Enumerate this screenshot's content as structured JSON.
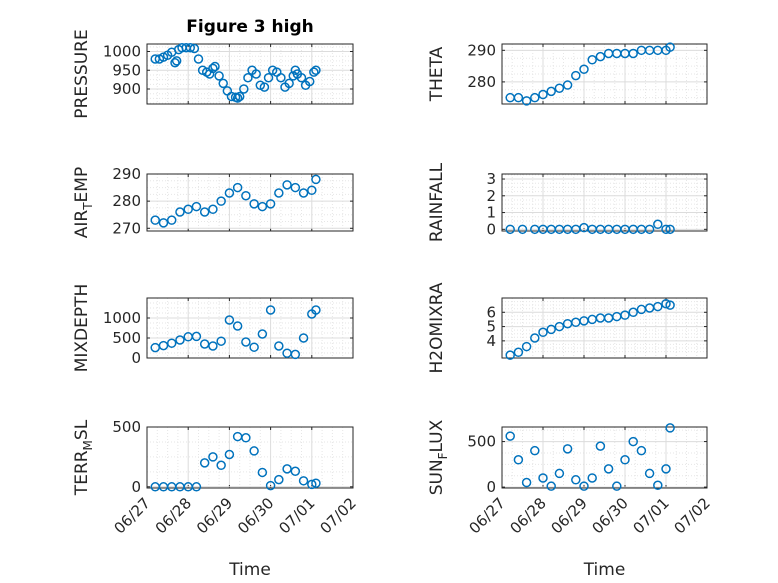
{
  "figure_title": "Figure 3 high",
  "colors": {
    "marker": "#0072BD",
    "axes": "#262626",
    "grid_major": "#dcdcdc",
    "grid_minor": "#e6e6e6",
    "background": "#ffffff"
  },
  "time_ticks": [
    "06/27",
    "06/28",
    "06/29",
    "06/30",
    "07/01",
    "07/02"
  ],
  "time_axis_label": "Time",
  "chart_data": [
    {
      "type": "scatter",
      "panel": "top-left",
      "title": "Figure 3 high",
      "xlabel": "",
      "ylabel": "PRESSURE",
      "ylim": [
        860,
        1020
      ],
      "yticks": [
        900,
        950,
        1000
      ],
      "xlim": [
        0,
        5
      ],
      "grid": true,
      "x": [
        0.2,
        0.3,
        0.4,
        0.5,
        0.6,
        0.68,
        0.72,
        0.77,
        0.85,
        0.95,
        1.05,
        1.15,
        1.25,
        1.35,
        1.45,
        1.52,
        1.6,
        1.65,
        1.75,
        1.85,
        1.95,
        2.05,
        2.15,
        2.2,
        2.25,
        2.35,
        2.45,
        2.55,
        2.65,
        2.75,
        2.85,
        2.95,
        3.05,
        3.15,
        3.25,
        3.35,
        3.45,
        3.55,
        3.6,
        3.65,
        3.75,
        3.85,
        3.95,
        4.05,
        4.1
      ],
      "y": [
        980,
        980,
        985,
        990,
        998,
        970,
        975,
        1005,
        1010,
        1010,
        1010,
        1008,
        980,
        950,
        945,
        940,
        955,
        960,
        935,
        915,
        895,
        880,
        878,
        876,
        880,
        900,
        930,
        950,
        940,
        910,
        905,
        930,
        950,
        945,
        930,
        905,
        915,
        935,
        950,
        940,
        930,
        910,
        920,
        945,
        950
      ]
    },
    {
      "type": "scatter",
      "panel": "top-right",
      "xlabel": "",
      "ylabel": "THETA",
      "ylim": [
        273,
        292
      ],
      "yticks": [
        280,
        290
      ],
      "xlim": [
        0,
        5
      ],
      "grid": true,
      "x": [
        0.2,
        0.4,
        0.6,
        0.8,
        1.0,
        1.2,
        1.4,
        1.6,
        1.8,
        2.0,
        2.2,
        2.4,
        2.6,
        2.8,
        3.0,
        3.2,
        3.4,
        3.6,
        3.8,
        4.0,
        4.1
      ],
      "y": [
        275,
        275,
        274,
        275,
        276,
        277,
        278,
        279,
        282,
        284,
        287,
        288,
        289,
        289,
        289,
        289,
        290,
        290,
        290,
        290,
        291
      ]
    },
    {
      "type": "scatter",
      "panel": "second-left",
      "xlabel": "",
      "ylabel": "AIR_TEMP",
      "ylim": [
        269,
        290
      ],
      "yticks": [
        270,
        280,
        290
      ],
      "xlim": [
        0,
        5
      ],
      "grid": true,
      "x": [
        0.2,
        0.4,
        0.6,
        0.8,
        1.0,
        1.2,
        1.4,
        1.6,
        1.8,
        2.0,
        2.2,
        2.4,
        2.6,
        2.8,
        3.0,
        3.2,
        3.4,
        3.6,
        3.8,
        4.0,
        4.1
      ],
      "y": [
        273,
        272,
        273,
        276,
        277,
        278,
        276,
        277,
        280,
        283,
        285,
        282,
        279,
        278,
        279,
        283,
        286,
        285,
        283,
        284,
        288
      ]
    },
    {
      "type": "scatter",
      "panel": "second-right",
      "xlabel": "",
      "ylabel": "RAINFALL",
      "ylim": [
        -0.1,
        3.3
      ],
      "yticks": [
        0,
        1,
        2,
        3
      ],
      "xlim": [
        0,
        5
      ],
      "grid": true,
      "x": [
        0.2,
        0.5,
        0.8,
        1.0,
        1.2,
        1.4,
        1.6,
        1.8,
        2.0,
        2.2,
        2.4,
        2.6,
        2.8,
        3.0,
        3.2,
        3.4,
        3.6,
        3.8,
        4.0,
        4.1
      ],
      "y": [
        0,
        0,
        0,
        0,
        0,
        0,
        0,
        0,
        0.1,
        0,
        0,
        0,
        0,
        0,
        0,
        0,
        0,
        0.3,
        0,
        0
      ]
    },
    {
      "type": "scatter",
      "panel": "third-left",
      "xlabel": "",
      "ylabel": "MIXDEPTH",
      "ylim": [
        0,
        1500
      ],
      "yticks": [
        0,
        500,
        1000
      ],
      "xlim": [
        0,
        5
      ],
      "grid": true,
      "x": [
        0.2,
        0.4,
        0.6,
        0.8,
        1.0,
        1.2,
        1.4,
        1.6,
        1.8,
        2.0,
        2.2,
        2.4,
        2.6,
        2.8,
        3.0,
        3.2,
        3.4,
        3.6,
        3.8,
        4.0,
        4.1
      ],
      "y": [
        260,
        310,
        370,
        450,
        530,
        540,
        350,
        300,
        420,
        950,
        800,
        400,
        270,
        600,
        1200,
        300,
        120,
        90,
        500,
        1100,
        1200
      ]
    },
    {
      "type": "scatter",
      "panel": "third-right",
      "xlabel": "",
      "ylabel": "H2OMIXRA",
      "ylim": [
        2.8,
        7
      ],
      "yticks": [
        4,
        5,
        6
      ],
      "xlim": [
        0,
        5
      ],
      "grid": true,
      "x": [
        0.2,
        0.4,
        0.6,
        0.8,
        1.0,
        1.2,
        1.4,
        1.6,
        1.8,
        2.0,
        2.2,
        2.4,
        2.6,
        2.8,
        3.0,
        3.2,
        3.4,
        3.6,
        3.8,
        4.0,
        4.1
      ],
      "y": [
        3.0,
        3.2,
        3.6,
        4.2,
        4.6,
        4.8,
        5.0,
        5.2,
        5.3,
        5.4,
        5.5,
        5.6,
        5.6,
        5.7,
        5.8,
        6.0,
        6.2,
        6.3,
        6.4,
        6.6,
        6.5
      ]
    },
    {
      "type": "scatter",
      "panel": "bottom-left",
      "xlabel": "Time",
      "ylabel": "TERR_MSL",
      "ylim": [
        -10,
        500
      ],
      "yticks": [
        0,
        500
      ],
      "xlim": [
        0,
        5
      ],
      "grid": true,
      "x": [
        0.2,
        0.4,
        0.6,
        0.8,
        1.0,
        1.2,
        1.4,
        1.6,
        1.8,
        2.0,
        2.2,
        2.4,
        2.6,
        2.8,
        3.0,
        3.2,
        3.4,
        3.6,
        3.8,
        4.0,
        4.1
      ],
      "y": [
        0,
        0,
        0,
        0,
        0,
        0,
        200,
        250,
        180,
        270,
        420,
        410,
        300,
        120,
        10,
        60,
        150,
        130,
        50,
        20,
        30
      ]
    },
    {
      "type": "scatter",
      "panel": "bottom-right",
      "xlabel": "Time",
      "ylabel": "SUN_FLUX",
      "ylim": [
        -10,
        660
      ],
      "yticks": [
        0,
        500
      ],
      "xlim": [
        0,
        5
      ],
      "grid": true,
      "x": [
        0.2,
        0.4,
        0.6,
        0.8,
        1.0,
        1.2,
        1.4,
        1.6,
        1.8,
        2.0,
        2.2,
        2.4,
        2.6,
        2.8,
        3.0,
        3.2,
        3.4,
        3.6,
        3.8,
        4.0,
        4.1
      ],
      "y": [
        560,
        300,
        50,
        400,
        100,
        10,
        150,
        420,
        80,
        10,
        100,
        450,
        200,
        10,
        300,
        500,
        400,
        150,
        20,
        200,
        650
      ]
    }
  ]
}
